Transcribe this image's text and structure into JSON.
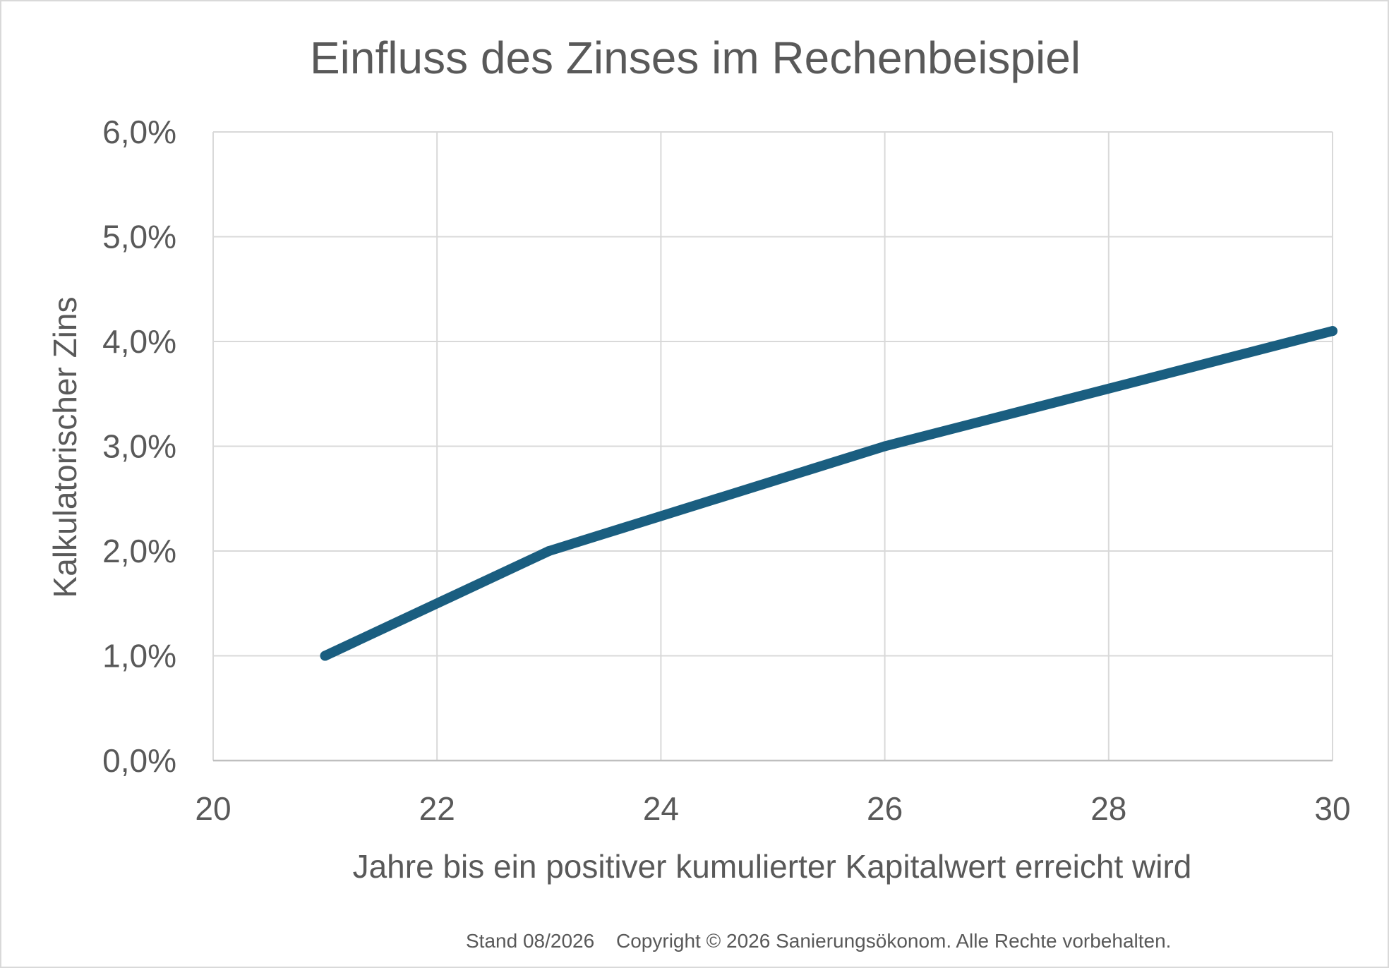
{
  "chart_data": {
    "type": "line",
    "title": "Einfluss des Zinses im Rechenbeispiel",
    "xlabel": "Jahre bis ein positiver kumulierter Kapitalwert erreicht wird",
    "ylabel": "Kalkulatorischer Zins",
    "xlim": [
      20,
      30
    ],
    "ylim": [
      0,
      0.06
    ],
    "x_ticks": [
      20,
      22,
      24,
      26,
      28,
      30
    ],
    "x_tick_labels": [
      "20",
      "22",
      "24",
      "26",
      "28",
      "30"
    ],
    "y_ticks": [
      0,
      0.01,
      0.02,
      0.03,
      0.04,
      0.05,
      0.06
    ],
    "y_tick_labels": [
      "0,0%",
      "1,0%",
      "2,0%",
      "3,0%",
      "4,0%",
      "5,0%",
      "6,0%"
    ],
    "grid": true,
    "series": [
      {
        "color": "#1a5e80",
        "x": [
          21,
          23,
          26,
          30
        ],
        "y": [
          0.01,
          0.02,
          0.03,
          0.041
        ]
      }
    ]
  },
  "footer": {
    "stand": "Stand 08/2026",
    "copyright": "Copyright © 2026 Sanierungsökonom. Alle Rechte vorbehalten."
  }
}
